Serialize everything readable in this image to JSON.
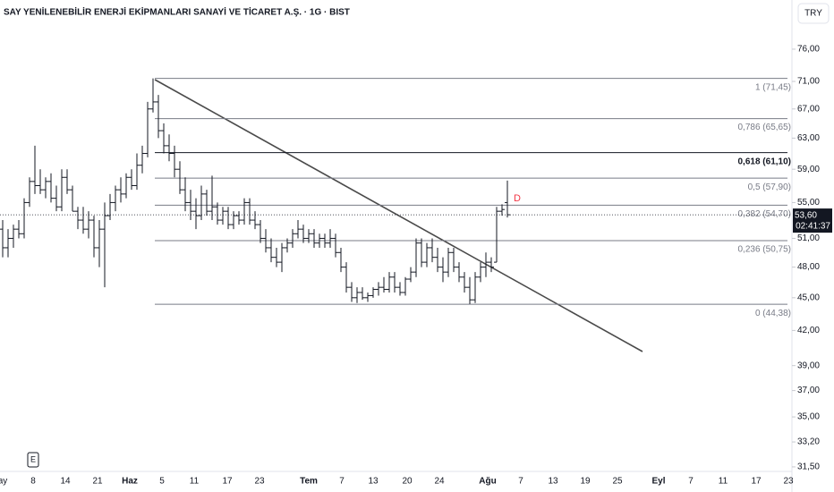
{
  "chart_data": {
    "type": "ohlc",
    "title": "SAY YENİLENEBİLİR ENERJİ EKİPMANLARI SANAYİ VE TİCARET A.Ş. · 1G · BIST",
    "currency": "TRY",
    "log_scale": true,
    "color": "#131722",
    "ylim": [
      31.2,
      84.3
    ],
    "yticks": [
      {
        "value": 76,
        "label": "76,00"
      },
      {
        "value": 71,
        "label": "71,00"
      },
      {
        "value": 67,
        "label": "67,00"
      },
      {
        "value": 63,
        "label": "63,00"
      },
      {
        "value": 59,
        "label": "59,00"
      },
      {
        "value": 55,
        "label": "55,00"
      },
      {
        "value": 51,
        "label": "51,00"
      },
      {
        "value": 48,
        "label": "48,00"
      },
      {
        "value": 45,
        "label": "45,00"
      },
      {
        "value": 42,
        "label": "42,00"
      },
      {
        "value": 39,
        "label": "39,00"
      },
      {
        "value": 37,
        "label": "37,00"
      },
      {
        "value": 35,
        "label": "35,00"
      },
      {
        "value": 33.2,
        "label": "33,20"
      },
      {
        "value": 31.5,
        "label": "31,50"
      }
    ],
    "categories": [
      "ay",
      "8",
      "14",
      "21",
      "Haz",
      "5",
      "11",
      "17",
      "23",
      "Tem",
      "7",
      "13",
      "20",
      "24",
      "Ağu",
      "7",
      "13",
      "19",
      "25",
      "Eyl",
      "7",
      "11",
      "17",
      "23"
    ],
    "bars": [
      [
        52,
        53,
        49,
        50
      ],
      [
        50,
        52,
        49,
        51
      ],
      [
        51,
        52.5,
        50,
        52
      ],
      [
        52,
        53,
        51,
        51.5
      ],
      [
        51.5,
        55.5,
        51,
        55
      ],
      [
        55,
        58,
        54.5,
        57.5
      ],
      [
        57.5,
        62,
        56,
        57
      ],
      [
        57,
        59,
        56,
        56.5
      ],
      [
        56.5,
        58,
        55.5,
        57.5
      ],
      [
        57.5,
        58.5,
        55,
        55.5
      ],
      [
        55.5,
        57,
        54,
        54.5
      ],
      [
        54.5,
        59,
        54,
        58
      ],
      [
        58,
        59,
        56,
        56.5
      ],
      [
        56.5,
        57,
        54,
        54
      ],
      [
        54,
        54.5,
        52,
        53
      ],
      [
        53,
        54.5,
        51.5,
        52
      ],
      [
        52,
        54,
        51,
        53
      ],
      [
        53,
        53.5,
        49,
        50
      ],
      [
        50,
        53,
        48,
        52
      ],
      [
        52,
        55,
        46,
        53.5
      ],
      [
        53.5,
        56,
        53,
        55
      ],
      [
        55,
        57,
        54,
        56.5
      ],
      [
        56.5,
        58,
        55,
        56
      ],
      [
        56,
        58.5,
        55.5,
        58
      ],
      [
        58,
        59,
        56.5,
        57
      ],
      [
        57,
        61,
        56.5,
        59.5
      ],
      [
        59.5,
        62,
        58.5,
        61
      ],
      [
        61,
        68,
        60.5,
        67
      ],
      [
        67,
        71.45,
        66.5,
        68
      ],
      [
        68,
        69,
        63,
        64
      ],
      [
        64,
        65,
        61,
        62
      ],
      [
        62,
        63.5,
        60,
        61
      ],
      [
        61,
        62,
        58,
        59
      ],
      [
        59,
        60,
        56,
        56.5
      ],
      [
        56.5,
        58,
        54,
        55
      ],
      [
        55,
        56.5,
        53,
        54
      ],
      [
        54,
        55.5,
        52,
        53.5
      ],
      [
        53.5,
        57,
        53,
        56
      ],
      [
        56,
        56.5,
        53.5,
        54
      ],
      [
        54,
        58.2,
        53,
        54.5
      ],
      [
        54.5,
        55,
        52.5,
        53
      ],
      [
        53,
        54.5,
        52.5,
        54
      ],
      [
        54,
        54.5,
        52,
        52.5
      ],
      [
        52.5,
        54,
        52,
        53.5
      ],
      [
        53.5,
        54,
        52.5,
        53
      ],
      [
        53,
        55.5,
        52.5,
        55
      ],
      [
        55,
        55.5,
        52.5,
        53
      ],
      [
        53,
        54,
        52,
        52.5
      ],
      [
        52.5,
        53,
        50.5,
        51
      ],
      [
        51,
        52,
        49.5,
        50
      ],
      [
        50,
        51,
        48.5,
        49
      ],
      [
        49,
        50,
        48,
        48.5
      ],
      [
        48.5,
        50.5,
        47.5,
        50
      ],
      [
        50,
        51,
        49.5,
        50.5
      ],
      [
        50.5,
        52,
        50,
        51.5
      ],
      [
        51.5,
        53,
        51,
        52
      ],
      [
        52,
        52.5,
        50.5,
        51
      ],
      [
        51,
        52,
        50.5,
        51.5
      ],
      [
        51.5,
        52,
        50,
        50.5
      ],
      [
        50.5,
        51.5,
        50,
        51
      ],
      [
        51,
        51.5,
        50,
        50.5
      ],
      [
        50.5,
        52,
        50,
        51
      ],
      [
        51,
        51.5,
        49,
        49.5
      ],
      [
        49.5,
        50,
        47.5,
        48
      ],
      [
        48,
        48.5,
        45.5,
        46
      ],
      [
        46,
        46.5,
        44.6,
        45
      ],
      [
        45,
        46,
        44.5,
        45.5
      ],
      [
        45.5,
        46,
        44.8,
        45
      ],
      [
        45,
        45.5,
        44.6,
        45.2
      ],
      [
        45.2,
        46,
        45,
        45.8
      ],
      [
        45.8,
        46.5,
        45.2,
        46
      ],
      [
        46,
        47,
        45.5,
        45.8
      ],
      [
        45.8,
        47.5,
        45.5,
        47
      ],
      [
        47,
        47.5,
        45.5,
        46
      ],
      [
        46,
        46.5,
        45.2,
        45.5
      ],
      [
        45.5,
        47,
        45.2,
        46.8
      ],
      [
        46.8,
        48,
        46.5,
        47.5
      ],
      [
        47.5,
        51,
        47,
        50.5
      ],
      [
        50.5,
        51,
        48,
        48.5
      ],
      [
        48.5,
        50.5,
        48,
        50
      ],
      [
        50,
        51,
        48.5,
        49
      ],
      [
        49,
        50,
        47.5,
        48
      ],
      [
        48,
        49,
        46.5,
        47.5
      ],
      [
        47.5,
        50,
        47,
        49.5
      ],
      [
        49.5,
        50,
        47.5,
        48
      ],
      [
        48,
        48.5,
        46.5,
        47
      ],
      [
        47,
        47.5,
        45.5,
        46
      ],
      [
        46,
        47,
        44.4,
        44.8
      ],
      [
        44.8,
        47.5,
        44.5,
        47
      ],
      [
        47,
        48.5,
        46.5,
        48
      ],
      [
        48,
        49.5,
        47,
        48.5
      ],
      [
        48.5,
        49,
        47.5,
        48
      ],
      [
        48.5,
        54.5,
        48.5,
        54
      ],
      [
        54,
        54.8,
        53.5,
        54.2
      ],
      [
        55,
        57.6,
        53.3,
        53.6
      ]
    ],
    "fib_levels": [
      {
        "value": 71.45,
        "label": "1 (71,45)",
        "color": "#787b86"
      },
      {
        "value": 65.65,
        "label": "0,786 (65,65)",
        "color": "#787b86"
      },
      {
        "value": 61.1,
        "label": "0,618 (61,10)",
        "color": "#131722"
      },
      {
        "value": 57.9,
        "label": "0,5 (57,90)",
        "color": "#787b86"
      },
      {
        "value": 54.7,
        "label": "0,382 (54,70)",
        "color": "#787b86"
      },
      {
        "value": 50.75,
        "label": "0,236 (50,75)",
        "color": "#787b86"
      },
      {
        "value": 44.38,
        "label": "0 (44,38)",
        "color": "#787b86"
      }
    ],
    "last_price": {
      "value": 53.6,
      "label": "53,60"
    },
    "countdown": "02:41:37",
    "dividend_marker": "D",
    "earnings_marker": "E"
  }
}
